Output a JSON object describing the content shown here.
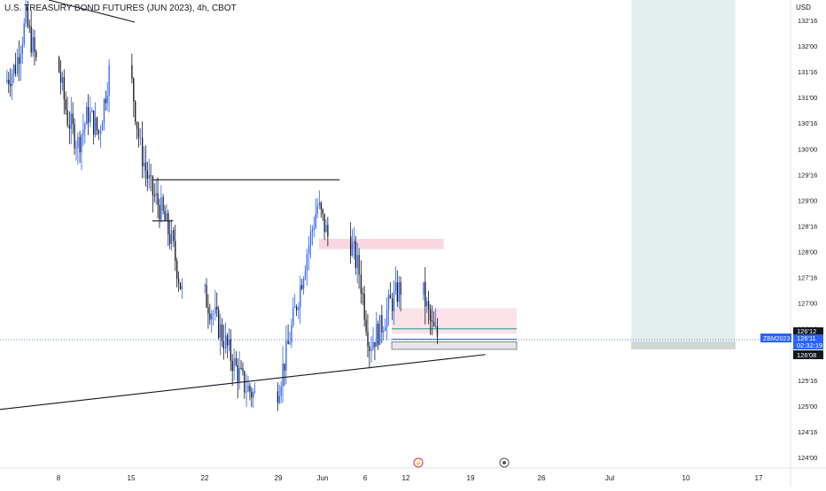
{
  "header": {
    "title": "U.S. TREASURY BOND FUTURES (JUN 2023), 4h, CBOT",
    "currency": "USD"
  },
  "colors": {
    "up": "#2962ff",
    "down": "#131722",
    "supply_zone": "#f8d7e0",
    "demand_zone": "#fbe1e8",
    "target_zone": "#e3efef",
    "price_line": "#2962ff"
  },
  "price_axis": {
    "ticks": [
      "132'16",
      "132'00",
      "131'16",
      "131'00",
      "130'16",
      "130'00",
      "129'16",
      "129'00",
      "128'16",
      "128'00",
      "127'16",
      "127'00",
      "126'16",
      "126'00",
      "125'16",
      "125'00",
      "124'16",
      "124'00"
    ],
    "labels": {
      "last_price": "126'12",
      "current_price": "126'11",
      "countdown": "02:32:19",
      "marker_price": "126'08",
      "symbol": "ZBM2023"
    }
  },
  "time_axis": {
    "ticks": [
      "8",
      "15",
      "22",
      "29",
      "Jun",
      "6",
      "12",
      "19",
      "26",
      "Jul",
      "10",
      "17"
    ]
  },
  "chart_data": {
    "type": "candlestick",
    "title": "U.S. TREASURY BOND FUTURES (JUN 2023), 4h, CBOT",
    "ylim": [
      123.75,
      133.1
    ],
    "y_unit": "points (32nds notation)",
    "x": [
      "May 3",
      "May 4",
      "May 5",
      "May 8",
      "May 9",
      "May 10",
      "May 11",
      "May 12",
      "May 15",
      "May 16",
      "May 17",
      "May 18",
      "May 19",
      "May 22",
      "May 23",
      "May 24",
      "May 25",
      "May 26",
      "May 29",
      "May 30",
      "May 31",
      "Jun 1",
      "Jun 2",
      "Jun 5",
      "Jun 6",
      "Jun 7",
      "Jun 8",
      "Jun 9",
      "Jun 12",
      "Jun 13"
    ],
    "close": [
      131.6,
      132.5,
      131.7,
      130.6,
      130.1,
      130.7,
      130.3,
      131.5,
      130.0,
      129.2,
      128.8,
      128.2,
      127.2,
      126.8,
      126.3,
      125.8,
      125.4,
      125.2,
      126.0,
      127.0,
      128.0,
      128.9,
      128.3,
      127.6,
      126.2,
      126.5,
      127.0,
      127.3,
      126.5,
      126.35
    ],
    "annotations": [
      {
        "type": "trendline",
        "from": [
          "May 1",
          124.9
        ],
        "to": [
          "Jun 18",
          126.0
        ]
      },
      {
        "type": "horizontal",
        "y": 129.4,
        "from": "May 17",
        "to": "Jun 4"
      },
      {
        "type": "horizontal",
        "y": 128.6,
        "from": "May 17",
        "to": "May 19"
      },
      {
        "type": "zone",
        "label": "supply",
        "y": [
          128.05,
          128.25
        ],
        "from": "Jun 2",
        "to": "Jun 14"
      },
      {
        "type": "zone",
        "label": "demand",
        "y": [
          126.4,
          126.9
        ],
        "from": "Jun 9",
        "to": "Jun 21"
      },
      {
        "type": "zone",
        "label": "target",
        "y": [
          126.15,
          133.1
        ],
        "from": "Jul 2",
        "to": "Jul 12"
      }
    ],
    "last_price": 126.34,
    "grid": false,
    "legend": "none"
  }
}
